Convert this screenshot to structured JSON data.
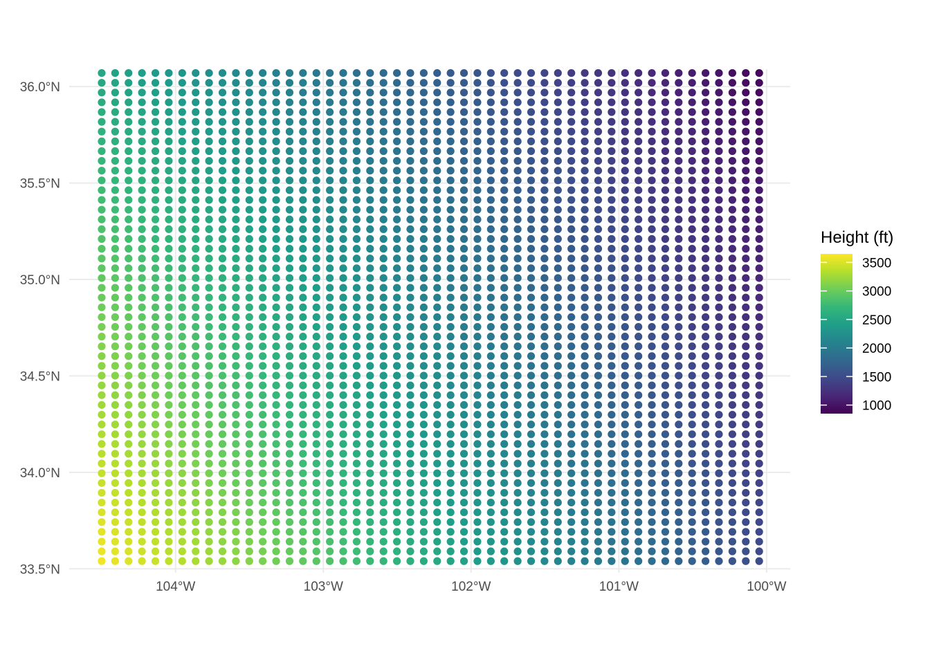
{
  "chart_data": {
    "type": "scatter",
    "title": "",
    "xlabel": "",
    "ylabel": "",
    "x_tick_values": [
      -104,
      -103,
      -102,
      -101,
      -100
    ],
    "x_tick_labels": [
      "104°W",
      "103°W",
      "102°W",
      "101°W",
      "100°W"
    ],
    "y_tick_values": [
      33.5,
      34.0,
      34.5,
      35.0,
      35.5,
      36.0
    ],
    "y_tick_labels": [
      "33.5°N",
      "34.0°N",
      "34.5°N",
      "35.0°N",
      "35.5°N",
      "36.0°N"
    ],
    "xlim": [
      -104.72,
      -99.84
    ],
    "ylim": [
      33.48,
      36.09
    ],
    "grid": true,
    "point_grid": {
      "lon_min": -104.5,
      "lon_max": -100.05,
      "lon_count": 50,
      "lat_min": 33.54,
      "lat_max": 36.07,
      "lat_count": 51
    },
    "height_model": {
      "description_units": "ft",
      "sw_corner": 3600,
      "nw_corner": 2500,
      "se_corner": 1500,
      "ne_corner": 900
    },
    "legend": {
      "title": "Height (ft)",
      "position": "right",
      "min": 850,
      "max": 3650,
      "breaks": [
        1000,
        1500,
        2000,
        2500,
        3000,
        3500
      ],
      "break_labels": [
        "1000",
        "1500",
        "2000",
        "2500",
        "3000",
        "3500"
      ],
      "palette": [
        "#440154",
        "#482878",
        "#3E4A89",
        "#31688E",
        "#26828E",
        "#1F9E89",
        "#35B779",
        "#6DCD59",
        "#B4DE2C",
        "#FDE725"
      ]
    }
  }
}
